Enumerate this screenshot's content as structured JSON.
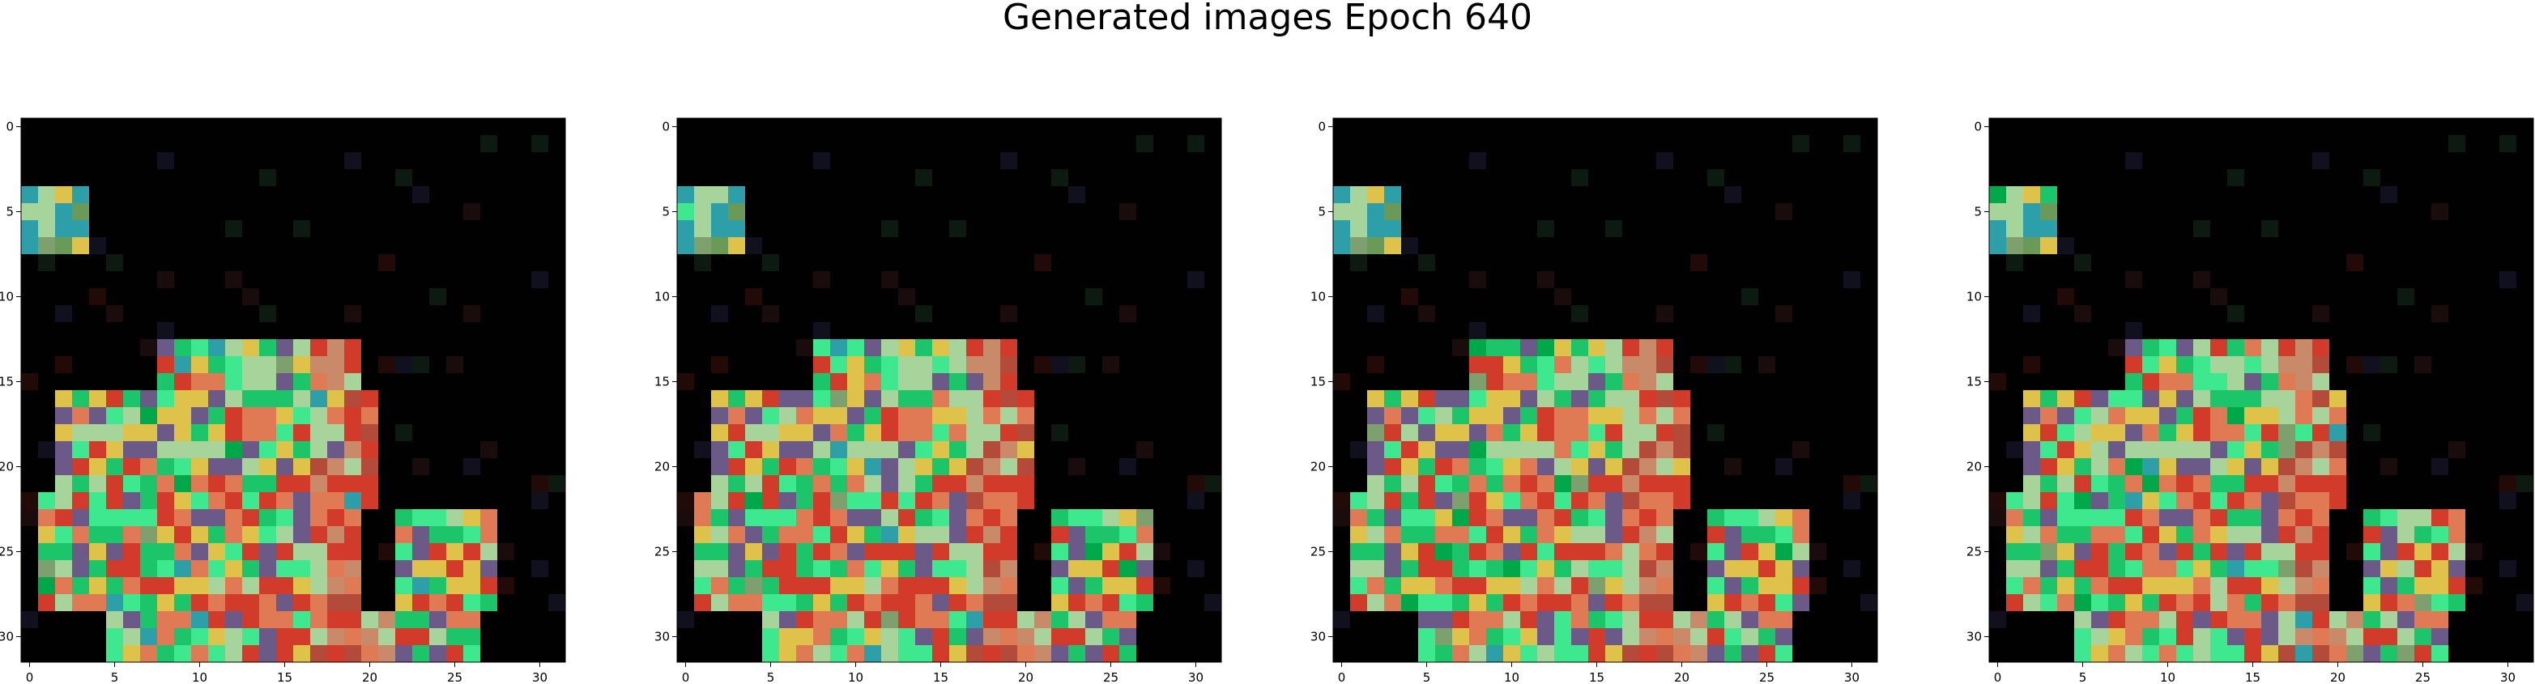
{
  "figure": {
    "title": "Generated images Epoch 640"
  },
  "image_grid": {
    "rows": 32,
    "cols": 32,
    "x_ticks": [
      "0",
      "5",
      "10",
      "15",
      "20",
      "25",
      "30"
    ],
    "y_ticks": [
      "0",
      "5",
      "10",
      "15",
      "20",
      "25",
      "30"
    ],
    "panel_count": 4,
    "background_color": "#020101",
    "dominant_colors": [
      "#3ee88f",
      "#1cc46a",
      "#a6d49a",
      "#e07a55",
      "#d23a2a",
      "#6b5a88",
      "#dfc24a",
      "#2c9fa8",
      "#7e9f6e",
      "#00a84a"
    ]
  }
}
